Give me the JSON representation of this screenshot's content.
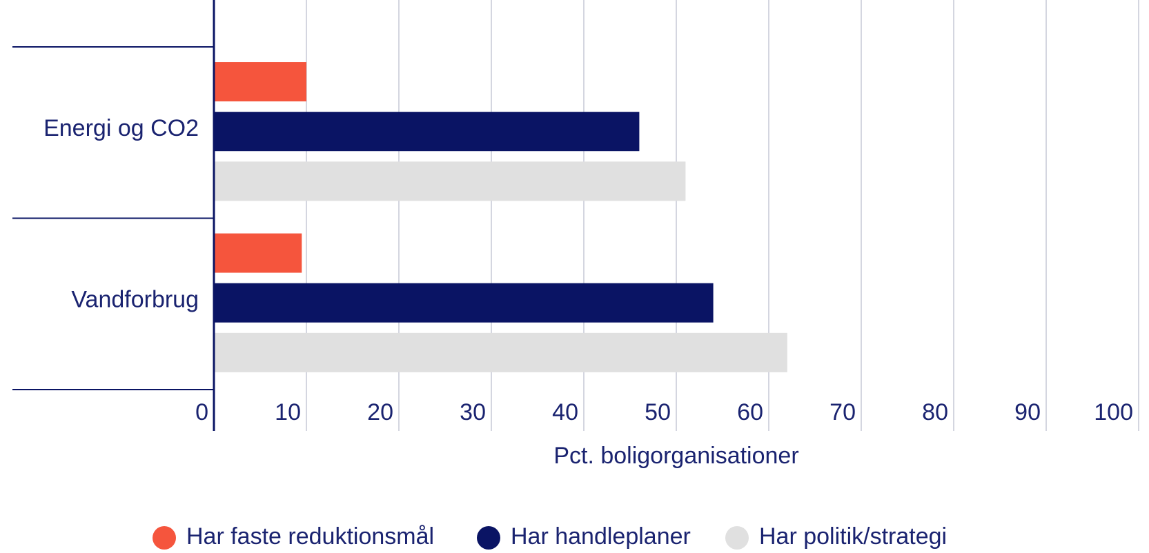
{
  "chart_data": {
    "type": "bar",
    "orientation": "horizontal",
    "categories": [
      "Energi og CO2",
      "Vandforbrug"
    ],
    "series": [
      {
        "name": "Har faste reduktionsmål",
        "color": "#f5553d",
        "values": [
          10,
          9.5
        ]
      },
      {
        "name": "Har handleplaner",
        "color": "#0a1464",
        "values": [
          46,
          54
        ]
      },
      {
        "name": "Har politik/strategi",
        "color": "#e0e0e0",
        "values": [
          51,
          62
        ]
      }
    ],
    "xlabel": "Pct. boligorganisationer",
    "xlim": [
      0,
      100
    ],
    "xticks": [
      0,
      10,
      20,
      30,
      40,
      50,
      60,
      70,
      80,
      90,
      100
    ],
    "grid": true,
    "legend": "bottom"
  }
}
